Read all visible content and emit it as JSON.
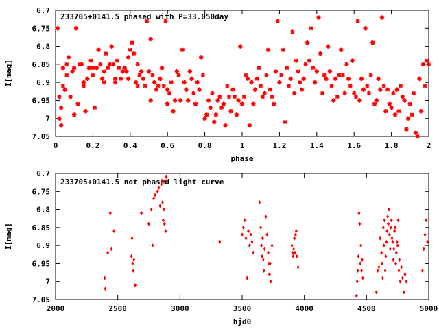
{
  "colors": {
    "marker": "#ff0000",
    "axis": "#000000",
    "background": "#ffffff"
  },
  "chart_data": [
    {
      "type": "scatter",
      "title": "233705+0141.5 phased with P=33.050day",
      "xlabel": "phase",
      "ylabel": "I[mag]",
      "xlim": [
        0,
        2
      ],
      "ylim": [
        7.05,
        6.7
      ],
      "y_inverted": true,
      "grid": false,
      "x_ticks": [
        "0",
        "0.2",
        "0.4",
        "0.6",
        "0.8",
        "1",
        "1.2",
        "1.4",
        "1.6",
        "1.8",
        "2"
      ],
      "y_ticks": [
        "6.7",
        "6.75",
        "6.8",
        "6.85",
        "6.9",
        "6.95",
        "7",
        "7.05"
      ],
      "marker": "star",
      "points": [
        [
          0.01,
          6.75
        ],
        [
          0.02,
          7.0
        ],
        [
          0.02,
          6.94
        ],
        [
          0.03,
          6.97
        ],
        [
          0.03,
          7.02
        ],
        [
          0.04,
          6.91
        ],
        [
          0.04,
          6.86
        ],
        [
          0.05,
          6.92
        ],
        [
          0.06,
          6.88
        ],
        [
          0.06,
          6.85
        ],
        [
          0.07,
          6.83
        ],
        [
          0.08,
          6.94
        ],
        [
          0.09,
          6.87
        ],
        [
          0.1,
          6.86
        ],
        [
          0.1,
          6.99
        ],
        [
          0.11,
          6.75
        ],
        [
          0.12,
          6.96
        ],
        [
          0.13,
          6.85
        ],
        [
          0.14,
          6.85
        ],
        [
          0.15,
          6.9
        ],
        [
          0.15,
          6.91
        ],
        [
          0.16,
          6.98
        ],
        [
          0.17,
          6.89
        ],
        [
          0.18,
          6.86
        ],
        [
          0.19,
          6.84
        ],
        [
          0.2,
          6.86
        ],
        [
          0.2,
          6.88
        ],
        [
          0.21,
          6.97
        ],
        [
          0.22,
          6.86
        ],
        [
          0.23,
          6.81
        ],
        [
          0.24,
          6.85
        ],
        [
          0.25,
          6.89
        ],
        [
          0.26,
          6.87
        ],
        [
          0.26,
          6.9
        ],
        [
          0.27,
          6.82
        ],
        [
          0.28,
          6.86
        ],
        [
          0.29,
          6.85
        ],
        [
          0.3,
          6.8
        ],
        [
          0.31,
          6.85
        ],
        [
          0.32,
          6.89
        ],
        [
          0.32,
          6.9
        ],
        [
          0.33,
          6.84
        ],
        [
          0.34,
          6.86
        ],
        [
          0.35,
          6.89
        ],
        [
          0.36,
          6.87
        ],
        [
          0.37,
          6.86
        ],
        [
          0.38,
          6.87
        ],
        [
          0.39,
          6.83
        ],
        [
          0.39,
          6.89
        ],
        [
          0.4,
          6.81
        ],
        [
          0.41,
          6.79
        ],
        [
          0.42,
          6.82
        ],
        [
          0.43,
          6.9
        ],
        [
          0.44,
          6.91
        ],
        [
          0.44,
          6.85
        ],
        [
          0.45,
          6.88
        ],
        [
          0.46,
          6.87
        ],
        [
          0.47,
          6.89
        ],
        [
          0.48,
          6.91
        ],
        [
          0.49,
          6.73
        ],
        [
          0.5,
          6.87
        ],
        [
          0.51,
          6.78
        ],
        [
          0.51,
          6.95
        ],
        [
          0.52,
          6.88
        ],
        [
          0.53,
          6.9
        ],
        [
          0.54,
          6.92
        ],
        [
          0.55,
          6.91
        ],
        [
          0.56,
          6.89
        ],
        [
          0.57,
          6.86
        ],
        [
          0.58,
          6.91
        ],
        [
          0.59,
          6.73
        ],
        [
          0.6,
          6.96
        ],
        [
          0.6,
          6.92
        ],
        [
          0.61,
          6.93
        ],
        [
          0.62,
          6.9
        ],
        [
          0.63,
          6.98
        ],
        [
          0.64,
          6.95
        ],
        [
          0.65,
          6.87
        ],
        [
          0.66,
          6.88
        ],
        [
          0.67,
          6.95
        ],
        [
          0.68,
          6.81
        ],
        [
          0.69,
          6.9
        ],
        [
          0.7,
          6.92
        ],
        [
          0.71,
          6.95
        ],
        [
          0.72,
          6.87
        ],
        [
          0.73,
          6.89
        ],
        [
          0.74,
          6.93
        ],
        [
          0.75,
          6.96
        ],
        [
          0.76,
          6.9
        ],
        [
          0.77,
          6.92
        ],
        [
          0.78,
          6.83
        ],
        [
          0.79,
          6.88
        ],
        [
          0.8,
          7.0
        ],
        [
          0.81,
          6.99
        ],
        [
          0.82,
          6.95
        ],
        [
          0.83,
          6.97
        ],
        [
          0.84,
          6.93
        ],
        [
          0.85,
          7.01
        ],
        [
          0.86,
          6.99
        ],
        [
          0.87,
          6.95
        ],
        [
          0.88,
          6.94
        ],
        [
          0.89,
          6.97
        ],
        [
          0.9,
          6.96
        ],
        [
          0.91,
          7.02
        ],
        [
          0.92,
          6.91
        ],
        [
          0.93,
          6.94
        ],
        [
          0.94,
          6.98
        ],
        [
          0.95,
          6.92
        ],
        [
          0.96,
          6.94
        ],
        [
          0.97,
          6.99
        ],
        [
          0.98,
          6.95
        ],
        [
          0.99,
          6.8
        ],
        [
          1.0,
          6.96
        ],
        [
          1.01,
          6.94
        ],
        [
          1.02,
          6.88
        ],
        [
          1.03,
          6.89
        ],
        [
          1.04,
          7.02
        ],
        [
          1.05,
          6.9
        ],
        [
          1.06,
          6.96
        ],
        [
          1.07,
          6.92
        ],
        [
          1.08,
          6.89
        ],
        [
          1.09,
          6.86
        ],
        [
          1.1,
          6.91
        ],
        [
          1.11,
          6.94
        ],
        [
          1.12,
          6.93
        ],
        [
          1.13,
          6.88
        ],
        [
          1.14,
          6.81
        ],
        [
          1.15,
          6.92
        ],
        [
          1.16,
          6.94
        ],
        [
          1.17,
          6.96
        ],
        [
          1.18,
          6.87
        ],
        [
          1.19,
          6.73
        ],
        [
          1.2,
          6.9
        ],
        [
          1.21,
          6.88
        ],
        [
          1.22,
          6.81
        ],
        [
          1.23,
          7.01
        ],
        [
          1.24,
          6.86
        ],
        [
          1.25,
          6.91
        ],
        [
          1.26,
          6.89
        ],
        [
          1.27,
          6.76
        ],
        [
          1.28,
          6.93
        ],
        [
          1.29,
          6.84
        ],
        [
          1.3,
          6.87
        ],
        [
          1.31,
          6.9
        ],
        [
          1.32,
          6.92
        ],
        [
          1.33,
          6.89
        ],
        [
          1.34,
          6.85
        ],
        [
          1.35,
          6.79
        ],
        [
          1.36,
          6.84
        ],
        [
          1.37,
          6.75
        ],
        [
          1.38,
          6.86
        ],
        [
          1.39,
          6.9
        ],
        [
          1.4,
          6.87
        ],
        [
          1.41,
          6.72
        ],
        [
          1.42,
          6.82
        ],
        [
          1.43,
          6.93
        ],
        [
          1.44,
          6.88
        ],
        [
          1.45,
          6.89
        ],
        [
          1.46,
          6.8
        ],
        [
          1.47,
          6.87
        ],
        [
          1.48,
          6.91
        ],
        [
          1.49,
          6.95
        ],
        [
          1.5,
          6.89
        ],
        [
          1.51,
          6.94
        ],
        [
          1.52,
          6.88
        ],
        [
          1.53,
          6.81
        ],
        [
          1.54,
          6.88
        ],
        [
          1.55,
          6.93
        ],
        [
          1.56,
          6.85
        ],
        [
          1.57,
          6.89
        ],
        [
          1.58,
          6.91
        ],
        [
          1.59,
          6.84
        ],
        [
          1.6,
          6.93
        ],
        [
          1.61,
          6.94
        ],
        [
          1.62,
          6.73
        ],
        [
          1.63,
          6.95
        ],
        [
          1.64,
          6.89
        ],
        [
          1.65,
          6.92
        ],
        [
          1.66,
          6.75
        ],
        [
          1.67,
          6.91
        ],
        [
          1.68,
          6.93
        ],
        [
          1.69,
          6.88
        ],
        [
          1.7,
          6.79
        ],
        [
          1.71,
          6.96
        ],
        [
          1.72,
          6.95
        ],
        [
          1.73,
          6.89
        ],
        [
          1.74,
          6.92
        ],
        [
          1.75,
          6.72
        ],
        [
          1.76,
          6.91
        ],
        [
          1.77,
          6.98
        ],
        [
          1.78,
          6.92
        ],
        [
          1.79,
          6.96
        ],
        [
          1.8,
          6.97
        ],
        [
          1.81,
          6.93
        ],
        [
          1.82,
          6.99
        ],
        [
          1.83,
          6.92
        ],
        [
          1.84,
          6.98
        ],
        [
          1.85,
          6.91
        ],
        [
          1.86,
          6.94
        ],
        [
          1.87,
          6.95
        ],
        [
          1.88,
          7.03
        ],
        [
          1.89,
          7.0
        ],
        [
          1.9,
          6.96
        ],
        [
          1.91,
          6.99
        ],
        [
          1.92,
          6.93
        ],
        [
          1.93,
          7.04
        ],
        [
          1.94,
          7.05
        ],
        [
          1.95,
          6.89
        ],
        [
          1.96,
          6.98
        ],
        [
          1.97,
          6.85
        ],
        [
          1.98,
          6.91
        ],
        [
          1.99,
          6.84
        ],
        [
          2.0,
          6.85
        ]
      ]
    },
    {
      "type": "scatter",
      "title": "233705+0141.5 not phased light curve",
      "xlabel": "hjd0",
      "ylabel": "I[mag]",
      "xlim": [
        2000,
        5000
      ],
      "ylim": [
        7.05,
        6.7
      ],
      "y_inverted": true,
      "grid": false,
      "x_ticks": [
        "2000",
        "2500",
        "3000",
        "3500",
        "4000",
        "4500",
        "5000"
      ],
      "y_ticks": [
        "6.7",
        "6.75",
        "6.8",
        "6.85",
        "6.9",
        "6.95",
        "7",
        "7.05"
      ],
      "marker": "diamond",
      "points": [
        [
          2395,
          6.99
        ],
        [
          2400,
          7.02
        ],
        [
          2420,
          6.92
        ],
        [
          2440,
          6.81
        ],
        [
          2450,
          6.91
        ],
        [
          2470,
          6.86
        ],
        [
          2610,
          6.93
        ],
        [
          2615,
          6.88
        ],
        [
          2620,
          6.95
        ],
        [
          2625,
          6.97
        ],
        [
          2630,
          6.94
        ],
        [
          2640,
          7.01
        ],
        [
          2690,
          6.81
        ],
        [
          2750,
          6.84
        ],
        [
          2770,
          6.8
        ],
        [
          2780,
          6.9
        ],
        [
          2790,
          6.77
        ],
        [
          2800,
          6.76
        ],
        [
          2820,
          6.75
        ],
        [
          2830,
          6.74
        ],
        [
          2840,
          6.79
        ],
        [
          2850,
          6.73
        ],
        [
          2855,
          6.72
        ],
        [
          2860,
          6.78
        ],
        [
          2865,
          6.83
        ],
        [
          2870,
          6.8
        ],
        [
          2875,
          6.84
        ],
        [
          2880,
          6.72
        ],
        [
          2885,
          6.86
        ],
        [
          2890,
          6.71
        ],
        [
          3320,
          6.89
        ],
        [
          3500,
          6.87
        ],
        [
          3510,
          6.85
        ],
        [
          3520,
          6.83
        ],
        [
          3530,
          6.88
        ],
        [
          3540,
          6.99
        ],
        [
          3550,
          6.86
        ],
        [
          3560,
          6.9
        ],
        [
          3570,
          6.87
        ],
        [
          3580,
          6.89
        ],
        [
          3590,
          6.92
        ],
        [
          3640,
          6.78
        ],
        [
          3650,
          6.85
        ],
        [
          3655,
          6.9
        ],
        [
          3660,
          6.93
        ],
        [
          3665,
          6.88
        ],
        [
          3670,
          6.94
        ],
        [
          3675,
          6.97
        ],
        [
          3680,
          6.91
        ],
        [
          3690,
          6.82
        ],
        [
          3700,
          6.87
        ],
        [
          3710,
          6.92
        ],
        [
          3715,
          6.95
        ],
        [
          3720,
          6.98
        ],
        [
          3725,
          6.95
        ],
        [
          3730,
          7.0
        ],
        [
          3740,
          6.9
        ],
        [
          3900,
          6.9
        ],
        [
          3905,
          6.92
        ],
        [
          3910,
          6.93
        ],
        [
          3915,
          6.91
        ],
        [
          3920,
          6.88
        ],
        [
          3925,
          6.92
        ],
        [
          3930,
          6.87
        ],
        [
          3935,
          6.86
        ],
        [
          3940,
          6.93
        ],
        [
          3950,
          6.96
        ],
        [
          4420,
          7.04
        ],
        [
          4425,
          7.0
        ],
        [
          4430,
          6.97
        ],
        [
          4435,
          6.93
        ],
        [
          4440,
          6.81
        ],
        [
          4445,
          6.84
        ],
        [
          4450,
          6.95
        ],
        [
          4455,
          6.9
        ],
        [
          4460,
          6.97
        ],
        [
          4465,
          6.94
        ],
        [
          4470,
          6.99
        ],
        [
          4580,
          7.03
        ],
        [
          4590,
          6.97
        ],
        [
          4600,
          6.96
        ],
        [
          4610,
          6.88
        ],
        [
          4620,
          6.92
        ],
        [
          4625,
          6.95
        ],
        [
          4630,
          6.99
        ],
        [
          4635,
          6.85
        ],
        [
          4640,
          6.9
        ],
        [
          4645,
          6.83
        ],
        [
          4650,
          6.97
        ],
        [
          4655,
          6.93
        ],
        [
          4660,
          6.89
        ],
        [
          4665,
          6.86
        ],
        [
          4670,
          6.82
        ],
        [
          4675,
          6.84
        ],
        [
          4680,
          6.8
        ],
        [
          4685,
          6.87
        ],
        [
          4690,
          6.91
        ],
        [
          4695,
          6.85
        ],
        [
          4700,
          6.83
        ],
        [
          4705,
          6.88
        ],
        [
          4710,
          6.89
        ],
        [
          4715,
          6.94
        ],
        [
          4720,
          6.91
        ],
        [
          4725,
          6.86
        ],
        [
          4730,
          6.85
        ],
        [
          4735,
          6.95
        ],
        [
          4740,
          6.92
        ],
        [
          4745,
          6.89
        ],
        [
          4750,
          6.9
        ],
        [
          4755,
          6.83
        ],
        [
          4760,
          6.97
        ],
        [
          4765,
          6.94
        ],
        [
          4770,
          7.0
        ],
        [
          4780,
          6.96
        ],
        [
          4790,
          6.99
        ],
        [
          4800,
          7.03
        ],
        [
          4810,
          6.98
        ],
        [
          4820,
          7.0
        ],
        [
          4950,
          6.97
        ],
        [
          4960,
          6.91
        ],
        [
          4970,
          6.87
        ],
        [
          4980,
          6.83
        ],
        [
          4990,
          6.89
        ]
      ]
    }
  ]
}
